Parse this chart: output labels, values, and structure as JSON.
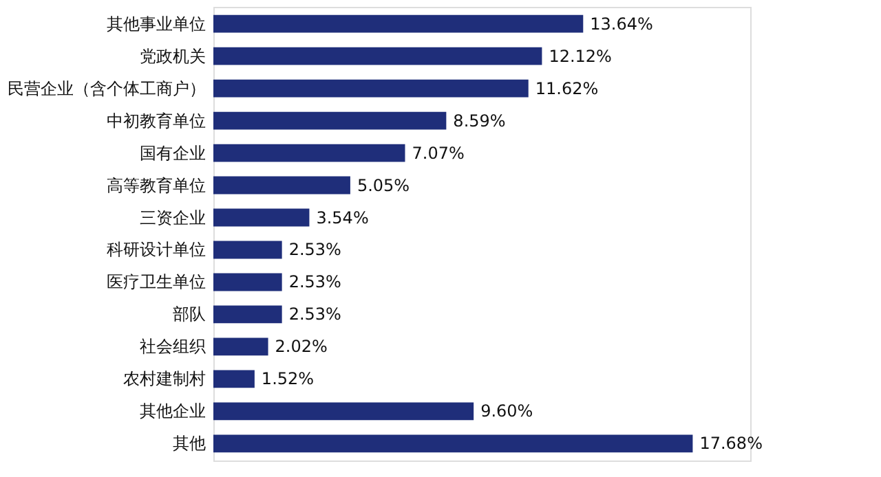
{
  "chart_data": {
    "type": "bar",
    "orientation": "horizontal",
    "color": "#1f2e7a",
    "categories": [
      "其他事业单位",
      "党政机关",
      "民营企业（含个体工商户）",
      "中初教育单位",
      "国有企业",
      "高等教育单位",
      "三资企业",
      "科研设计单位",
      "医疗卫生单位",
      "部队",
      "社会组织",
      "农村建制村",
      "其他企业",
      "其他"
    ],
    "values": [
      13.64,
      12.12,
      11.62,
      8.59,
      7.07,
      5.05,
      3.54,
      2.53,
      2.53,
      2.53,
      2.02,
      1.52,
      9.6,
      17.68
    ],
    "value_labels": [
      "13.64%",
      "12.12%",
      "11.62%",
      "8.59%",
      "7.07%",
      "5.05%",
      "3.54%",
      "2.53%",
      "2.53%",
      "2.53%",
      "2.02%",
      "1.52%",
      "9.60%",
      "17.68%"
    ]
  }
}
